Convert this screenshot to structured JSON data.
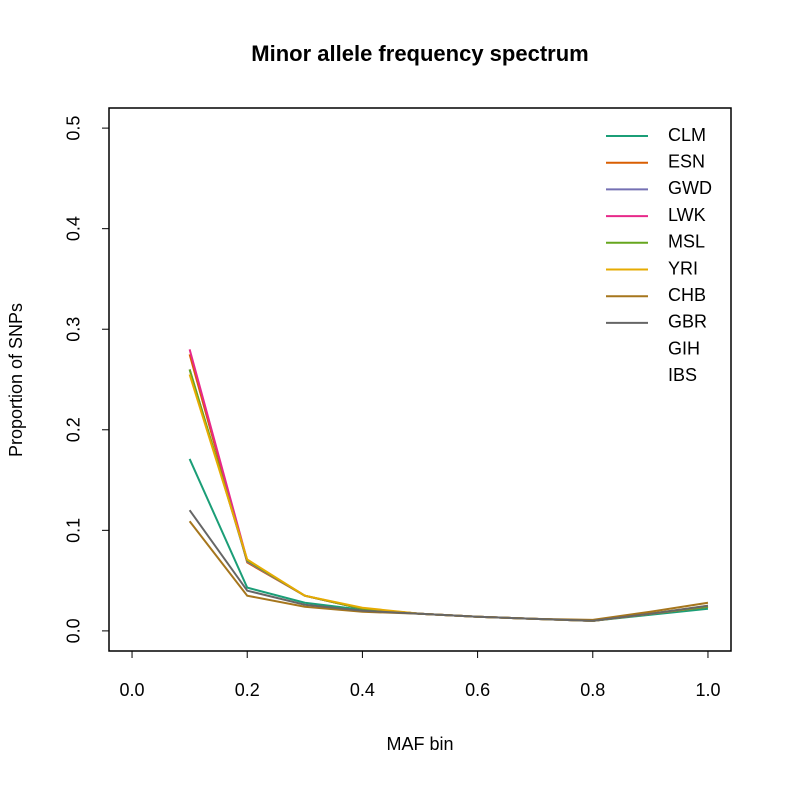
{
  "chart_data": {
    "type": "line",
    "title": "Minor allele frequency spectrum",
    "xlabel": "MAF bin",
    "ylabel": "Proportion of SNPs",
    "x": [
      0.1,
      0.2,
      0.3,
      0.4,
      0.5,
      0.6,
      0.7,
      0.8,
      0.9,
      1.0
    ],
    "series": [
      {
        "name": "CLM",
        "color": "#1B9E77",
        "values": [
          0.171,
          0.043,
          0.028,
          0.021,
          0.017,
          0.014,
          0.012,
          0.01,
          0.016,
          0.022
        ]
      },
      {
        "name": "ESN",
        "color": "#D95F02",
        "values": [
          0.275,
          0.068,
          0.035,
          0.022,
          0.017,
          0.014,
          0.012,
          0.01,
          0.017,
          0.024
        ]
      },
      {
        "name": "GWD",
        "color": "#7570B3",
        "values": [
          0.26,
          0.069,
          0.035,
          0.022,
          0.017,
          0.014,
          0.012,
          0.01,
          0.017,
          0.024
        ]
      },
      {
        "name": "LWK",
        "color": "#E7298A",
        "values": [
          0.28,
          0.07,
          0.035,
          0.022,
          0.017,
          0.014,
          0.012,
          0.01,
          0.017,
          0.024
        ]
      },
      {
        "name": "MSL",
        "color": "#66A61E",
        "values": [
          0.26,
          0.07,
          0.035,
          0.022,
          0.017,
          0.014,
          0.012,
          0.01,
          0.017,
          0.024
        ]
      },
      {
        "name": "YRI",
        "color": "#E6AB02",
        "values": [
          0.255,
          0.071,
          0.035,
          0.023,
          0.017,
          0.014,
          0.012,
          0.01,
          0.017,
          0.025
        ]
      },
      {
        "name": "CHB",
        "color": "#A6761D",
        "values": [
          0.109,
          0.035,
          0.024,
          0.019,
          0.017,
          0.014,
          0.012,
          0.011,
          0.019,
          0.028
        ]
      },
      {
        "name": "GBR",
        "color": "#666666",
        "values": [
          0.12,
          0.04,
          0.026,
          0.02,
          0.017,
          0.014,
          0.012,
          0.01,
          0.017,
          0.025
        ]
      },
      {
        "name": "GIH",
        "color": null,
        "values": [
          null,
          null,
          null,
          null,
          null,
          null,
          null,
          null,
          null,
          null
        ]
      },
      {
        "name": "IBS",
        "color": null,
        "values": [
          null,
          null,
          null,
          null,
          null,
          null,
          null,
          null,
          null,
          null
        ]
      }
    ],
    "xlim": [
      -0.04,
      1.04
    ],
    "xticks": [
      {
        "value": 0,
        "label": "0.0"
      },
      0.2,
      0.4,
      0.6,
      0.8,
      {
        "value": 1,
        "label": "1.0"
      }
    ],
    "ylim": [
      -0.02,
      0.52
    ],
    "yticks": [
      {
        "value": 0,
        "label": "0.0"
      },
      0.1,
      0.2,
      0.3,
      0.4,
      0.5
    ],
    "legend": "topright"
  }
}
